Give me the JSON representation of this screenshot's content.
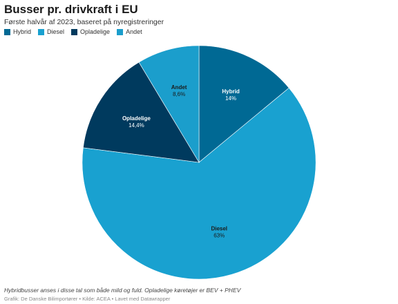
{
  "chart_data": {
    "type": "pie",
    "title": "Busser pr. drivkraft i EU",
    "subtitle": "Første halvår af 2023, baseret på nyregistreringer",
    "legend_position": "top-left",
    "slices": [
      {
        "name": "Hybrid",
        "value": 14,
        "label": "14%",
        "color": "#006994",
        "label_color": "#ffffff"
      },
      {
        "name": "Diesel",
        "value": 63,
        "label": "63%",
        "color": "#19a1d0",
        "label_color": "#1a1a1a"
      },
      {
        "name": "Opladelige",
        "value": 14.4,
        "label": "14,4%",
        "color": "#003a5e",
        "label_color": "#ffffff"
      },
      {
        "name": "Andet",
        "value": 8.6,
        "label": "8,6%",
        "color": "#1b9ecc",
        "label_color": "#1a1a1a"
      }
    ],
    "notes": "Hybridbusser anses i disse tal som både mild og fuld. Opladelige køretøjer er BEV + PHEV",
    "source": "Grafik: De Danske Bilimportører • Kilde: ACEA • Lavet med Datawrapper"
  }
}
